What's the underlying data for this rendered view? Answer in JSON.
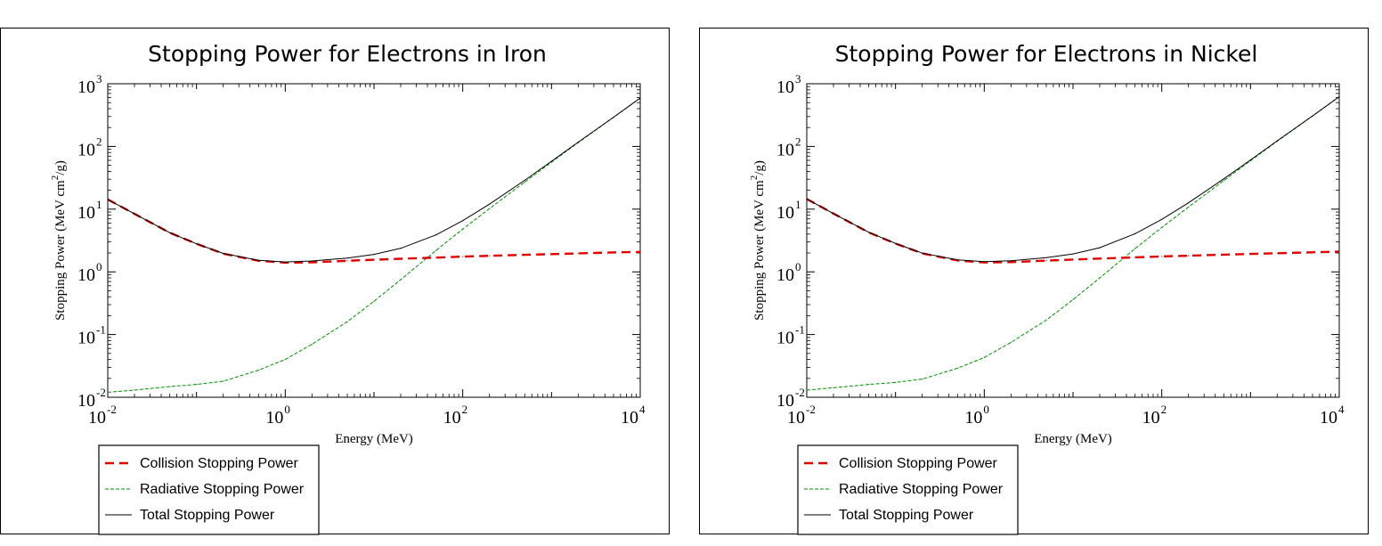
{
  "chart_data": [
    {
      "type": "line",
      "title": "Stopping Power for Electrons in Iron",
      "xlabel": "Energy (MeV)",
      "ylabel": "Stopping Power (MeV cm²/g)",
      "ylabel_parts": {
        "main": "Stopping Power (MeV cm",
        "sup": "2",
        "tail": "/g)"
      },
      "x_scale": "log",
      "y_scale": "log",
      "xlim": [
        0.01,
        10000
      ],
      "ylim": [
        0.01,
        1000
      ],
      "x_ticks": [
        {
          "base": "10",
          "exp": "-2",
          "value": 0.01
        },
        {
          "base": "10",
          "exp": "0",
          "value": 1
        },
        {
          "base": "10",
          "exp": "2",
          "value": 100
        },
        {
          "base": "10",
          "exp": "4",
          "value": 10000
        }
      ],
      "y_ticks": [
        {
          "base": "10",
          "exp": "-2",
          "value": 0.01
        },
        {
          "base": "10",
          "exp": "-1",
          "value": 0.1
        },
        {
          "base": "10",
          "exp": "0",
          "value": 1
        },
        {
          "base": "10",
          "exp": "1",
          "value": 10
        },
        {
          "base": "10",
          "exp": "2",
          "value": 100
        },
        {
          "base": "10",
          "exp": "3",
          "value": 1000
        }
      ],
      "grid": false,
      "legend_position": "below-left",
      "series": [
        {
          "name": "Collision Stopping Power",
          "color": "#e00000",
          "style": "dashed-thick",
          "x": [
            0.01,
            0.02,
            0.05,
            0.1,
            0.2,
            0.5,
            1,
            2,
            5,
            10,
            20,
            50,
            100,
            200,
            500,
            1000,
            2000,
            5000,
            10000
          ],
          "y": [
            14.3,
            8.4,
            4.2,
            2.8,
            1.95,
            1.5,
            1.4,
            1.42,
            1.5,
            1.56,
            1.62,
            1.69,
            1.75,
            1.8,
            1.87,
            1.92,
            1.97,
            2.04,
            2.08
          ]
        },
        {
          "name": "Radiative Stopping Power",
          "color": "#009000",
          "style": "dashed-thin",
          "x": [
            0.01,
            0.02,
            0.05,
            0.1,
            0.2,
            0.5,
            1,
            2,
            5,
            10,
            20,
            50,
            100,
            200,
            500,
            1000,
            2000,
            5000,
            10000
          ],
          "y": [
            0.012,
            0.013,
            0.0148,
            0.016,
            0.018,
            0.027,
            0.04,
            0.07,
            0.16,
            0.34,
            0.75,
            2.2,
            4.8,
            10.2,
            27,
            56,
            115,
            290,
            590
          ]
        },
        {
          "name": "Total Stopping Power",
          "color": "#000000",
          "style": "solid",
          "x": [
            0.01,
            0.02,
            0.05,
            0.1,
            0.2,
            0.5,
            1,
            2,
            5,
            10,
            20,
            50,
            100,
            200,
            500,
            1000,
            2000,
            5000,
            10000
          ],
          "y": [
            14.3,
            8.4,
            4.2,
            2.8,
            1.97,
            1.53,
            1.44,
            1.49,
            1.66,
            1.9,
            2.37,
            3.89,
            6.55,
            12.0,
            28.9,
            57.9,
            117,
            292,
            592
          ]
        }
      ]
    },
    {
      "type": "line",
      "title": "Stopping Power for Electrons in Nickel",
      "xlabel": "Energy (MeV)",
      "ylabel": "Stopping Power (MeV cm²/g)",
      "ylabel_parts": {
        "main": "Stopping Power (MeV cm",
        "sup": "2",
        "tail": "/g)"
      },
      "x_scale": "log",
      "y_scale": "log",
      "xlim": [
        0.01,
        10000
      ],
      "ylim": [
        0.01,
        1000
      ],
      "x_ticks": [
        {
          "base": "10",
          "exp": "-2",
          "value": 0.01
        },
        {
          "base": "10",
          "exp": "0",
          "value": 1
        },
        {
          "base": "10",
          "exp": "2",
          "value": 100
        },
        {
          "base": "10",
          "exp": "4",
          "value": 10000
        }
      ],
      "y_ticks": [
        {
          "base": "10",
          "exp": "-2",
          "value": 0.01
        },
        {
          "base": "10",
          "exp": "-1",
          "value": 0.1
        },
        {
          "base": "10",
          "exp": "0",
          "value": 1
        },
        {
          "base": "10",
          "exp": "1",
          "value": 10
        },
        {
          "base": "10",
          "exp": "2",
          "value": 100
        },
        {
          "base": "10",
          "exp": "3",
          "value": 1000
        }
      ],
      "grid": false,
      "legend_position": "below-left",
      "series": [
        {
          "name": "Collision Stopping Power",
          "color": "#e00000",
          "style": "dashed-thick",
          "x": [
            0.01,
            0.02,
            0.05,
            0.1,
            0.2,
            0.5,
            1,
            2,
            5,
            10,
            20,
            50,
            100,
            200,
            500,
            1000,
            2000,
            5000,
            10000
          ],
          "y": [
            14.5,
            8.5,
            4.25,
            2.82,
            1.97,
            1.52,
            1.41,
            1.43,
            1.51,
            1.57,
            1.63,
            1.7,
            1.76,
            1.81,
            1.88,
            1.93,
            1.98,
            2.05,
            2.1
          ]
        },
        {
          "name": "Radiative Stopping Power",
          "color": "#009000",
          "style": "dashed-thin",
          "x": [
            0.01,
            0.02,
            0.05,
            0.1,
            0.2,
            0.5,
            1,
            2,
            5,
            10,
            20,
            50,
            100,
            200,
            500,
            1000,
            2000,
            5000,
            10000
          ],
          "y": [
            0.013,
            0.0142,
            0.016,
            0.0172,
            0.0195,
            0.029,
            0.043,
            0.075,
            0.17,
            0.36,
            0.8,
            2.35,
            5.1,
            10.8,
            28.5,
            59,
            121,
            305,
            620
          ]
        },
        {
          "name": "Total Stopping Power",
          "color": "#000000",
          "style": "solid",
          "x": [
            0.01,
            0.02,
            0.05,
            0.1,
            0.2,
            0.5,
            1,
            2,
            5,
            10,
            20,
            50,
            100,
            200,
            500,
            1000,
            2000,
            5000,
            10000
          ],
          "y": [
            14.5,
            8.5,
            4.27,
            2.84,
            1.99,
            1.55,
            1.45,
            1.5,
            1.68,
            1.93,
            2.43,
            4.05,
            6.86,
            12.6,
            30.4,
            60.9,
            123,
            307,
            622
          ]
        }
      ]
    }
  ]
}
